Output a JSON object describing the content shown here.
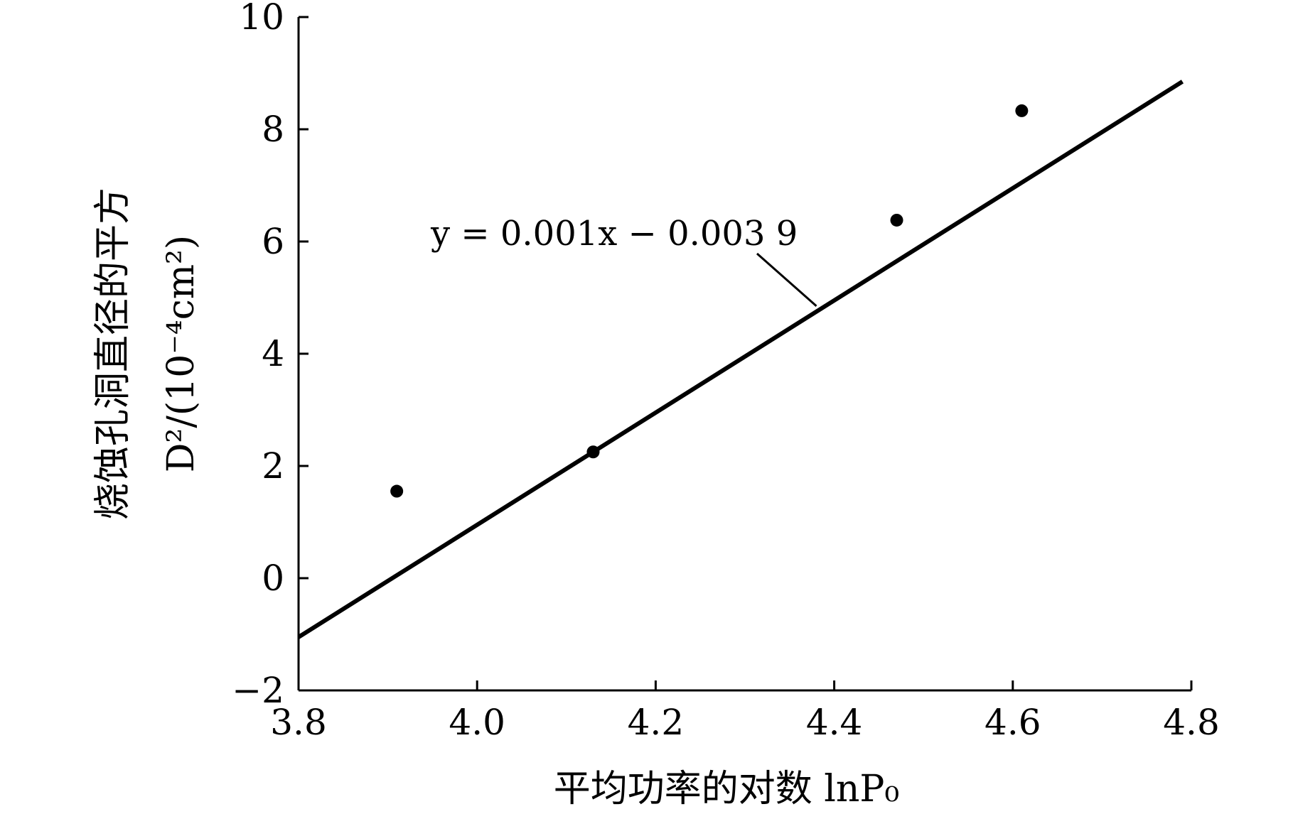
{
  "chart_data": {
    "type": "scatter",
    "xlabel": "平均功率的对数 lnP₀",
    "ylabel_line1": "烧蚀孔洞直径的平方",
    "ylabel_line2": "D²/(10⁻⁴cm²)",
    "xlim": [
      3.8,
      4.8
    ],
    "ylim": [
      -2,
      10
    ],
    "x_ticks": [
      3.8,
      4.0,
      4.2,
      4.4,
      4.6,
      4.8
    ],
    "x_tick_labels": [
      "3.8",
      "4.0",
      "4.2",
      "4.4",
      "4.6",
      "4.8"
    ],
    "y_ticks": [
      -2,
      0,
      2,
      4,
      6,
      8,
      10
    ],
    "y_tick_labels": [
      "−2",
      "0",
      "2",
      "4",
      "6",
      "8",
      "10"
    ],
    "points": [
      {
        "x": 3.91,
        "y": 1.55
      },
      {
        "x": 4.13,
        "y": 2.25
      },
      {
        "x": 4.47,
        "y": 6.38
      },
      {
        "x": 4.61,
        "y": 8.33
      }
    ],
    "fit_line": {
      "x": [
        3.8,
        4.79
      ],
      "y": [
        -1.05,
        8.85
      ],
      "label": "y = 0.001x − 0.003 9",
      "label_anchor": {
        "x": 4.38,
        "y": 4.85
      }
    },
    "grid": false,
    "legend": "none"
  }
}
